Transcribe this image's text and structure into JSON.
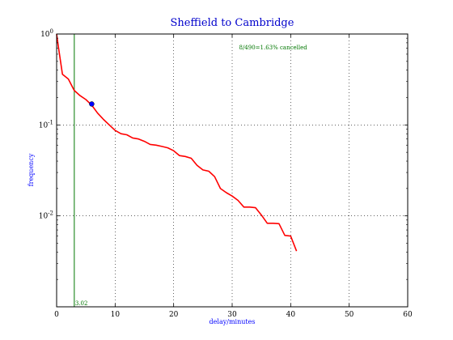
{
  "chart_data": {
    "type": "line",
    "title": "Sheffield to Cambridge",
    "xlabel": "delay/minutes",
    "ylabel": "frequency",
    "xlim": [
      0,
      60
    ],
    "ylim": [
      0.001,
      1
    ],
    "yscale": "log",
    "grid": true,
    "x_ticks": [
      "0",
      "10",
      "20",
      "30",
      "40",
      "50",
      "60"
    ],
    "y_ticks": [
      {
        "base": "10",
        "exp": "0"
      },
      {
        "base": "10",
        "exp": "-1"
      },
      {
        "base": "10",
        "exp": "-2"
      }
    ],
    "series": [
      {
        "color": "#ff0000",
        "points": [
          [
            0,
            1.0
          ],
          [
            0.3,
            0.72
          ],
          [
            1,
            0.36
          ],
          [
            2,
            0.32
          ],
          [
            3,
            0.24
          ],
          [
            4,
            0.21
          ],
          [
            5,
            0.19
          ],
          [
            6,
            0.165
          ],
          [
            7,
            0.135
          ],
          [
            8,
            0.115
          ],
          [
            9,
            0.1
          ],
          [
            10,
            0.087
          ],
          [
            11,
            0.08
          ],
          [
            12,
            0.078
          ],
          [
            13,
            0.072
          ],
          [
            14,
            0.07
          ],
          [
            15,
            0.066
          ],
          [
            16,
            0.061
          ],
          [
            17,
            0.06
          ],
          [
            18,
            0.058
          ],
          [
            19,
            0.056
          ],
          [
            20,
            0.052
          ],
          [
            21,
            0.046
          ],
          [
            22,
            0.045
          ],
          [
            23,
            0.043
          ],
          [
            24,
            0.036
          ],
          [
            25,
            0.032
          ],
          [
            26,
            0.031
          ],
          [
            27,
            0.027
          ],
          [
            28,
            0.02
          ],
          [
            29,
            0.018
          ],
          [
            30,
            0.0165
          ],
          [
            31,
            0.0148
          ],
          [
            32,
            0.0125
          ],
          [
            33,
            0.0125
          ],
          [
            34,
            0.0123
          ],
          [
            35,
            0.0102
          ],
          [
            36,
            0.0083
          ],
          [
            37,
            0.0083
          ],
          [
            38,
            0.0082
          ],
          [
            39,
            0.0061
          ],
          [
            40,
            0.006
          ],
          [
            41,
            0.0041
          ]
        ]
      }
    ],
    "marker": {
      "x": 6,
      "y": 0.17,
      "color": "#0000ff"
    },
    "vline": {
      "x": 3.02,
      "label": "3.02",
      "color": "#007700"
    },
    "annotation": {
      "text": "8/490=1.63% cancelled",
      "x": 37,
      "y": 0.72,
      "color": "#007700"
    }
  }
}
